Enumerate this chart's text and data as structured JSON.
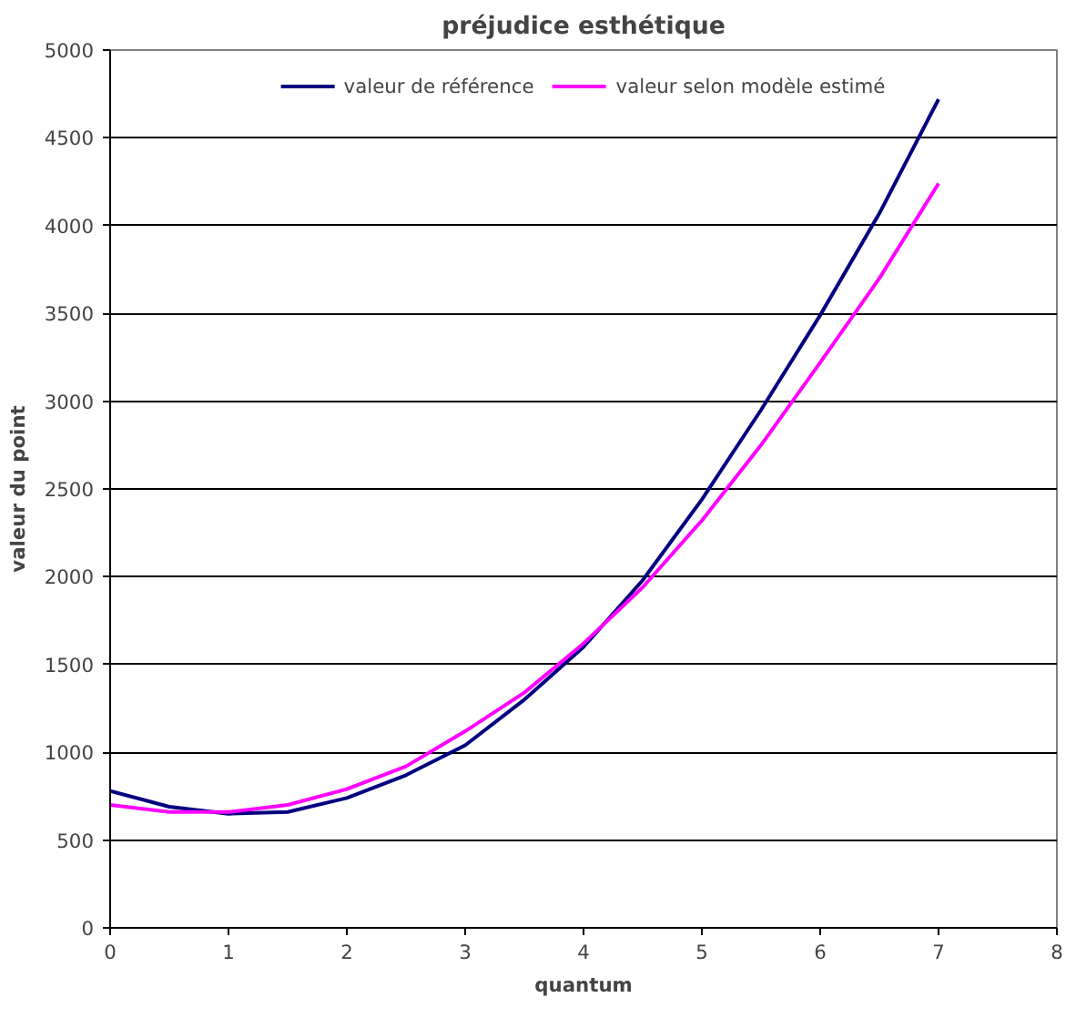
{
  "chart_data": {
    "type": "line",
    "title": "préjudice esthétique",
    "xlabel": "quantum",
    "ylabel": "valeur du point",
    "x": [
      0,
      0.5,
      1,
      1.5,
      2,
      2.5,
      3,
      3.5,
      4,
      4.5,
      5,
      5.5,
      6,
      6.5,
      7
    ],
    "series": [
      {
        "name": "valeur de référence",
        "color": "#000080",
        "values": [
          780,
          690,
          650,
          660,
          740,
          870,
          1040,
          1300,
          1600,
          1980,
          2440,
          2950,
          3490,
          4070,
          4720
        ]
      },
      {
        "name": "valeur selon modèle estimé",
        "color": "#ff00ff",
        "values": [
          700,
          660,
          660,
          700,
          790,
          920,
          1120,
          1340,
          1620,
          1940,
          2320,
          2750,
          3220,
          3700,
          4240
        ]
      }
    ],
    "xlim": [
      0,
      8
    ],
    "xticks": [
      0,
      1,
      2,
      3,
      4,
      5,
      6,
      7,
      8
    ],
    "ylim": [
      0,
      5000
    ],
    "yticks": [
      0,
      500,
      1000,
      1500,
      2000,
      2500,
      3000,
      3500,
      4000,
      4500,
      5000
    ],
    "grid": "y",
    "legend": "top",
    "marker": "none",
    "line_style": "solid"
  }
}
